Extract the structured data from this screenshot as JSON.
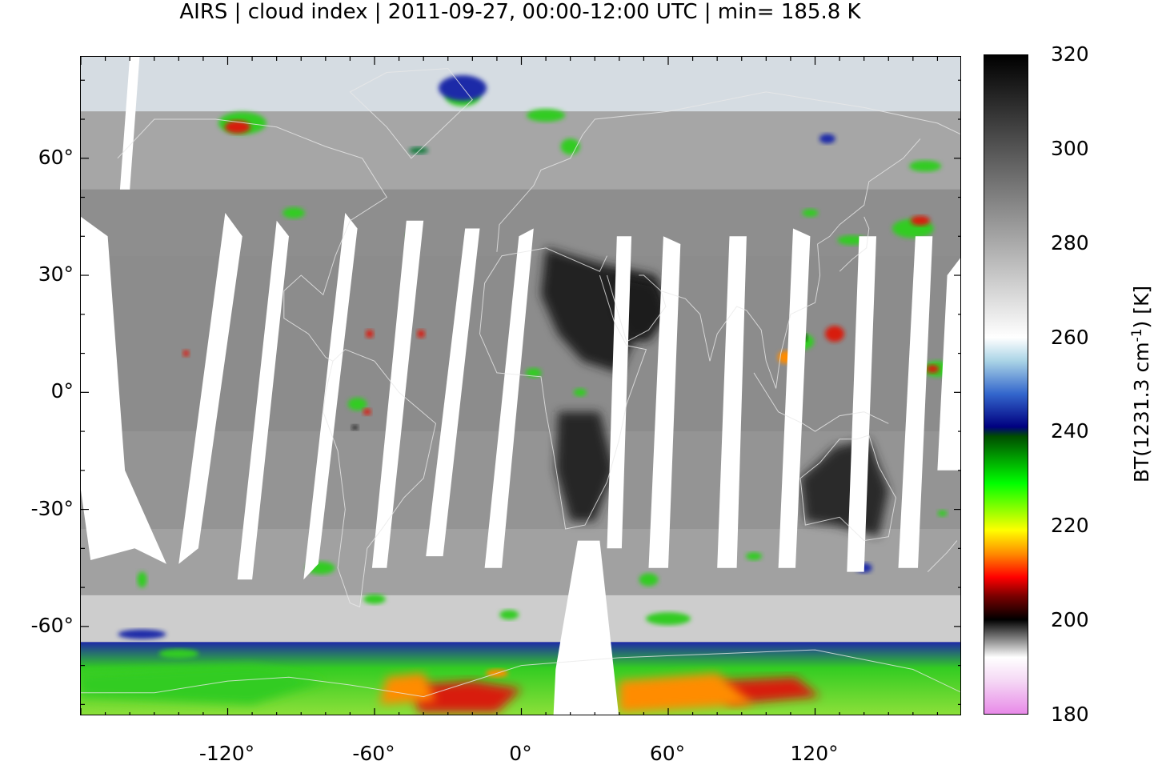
{
  "title": "AIRS | cloud index | 2011-09-27, 00:00-12:00 UTC | min= 185.8 K",
  "colors": {
    "cloud_cold_pink": "#e88ae8",
    "cloud_black": "#151515",
    "cloud_red": "#d81a0a",
    "cloud_orange": "#ff8c00",
    "cloud_yellow": "#ffe800",
    "cloud_green": "#33cc22",
    "cloud_darkgreen": "#0a7a3a",
    "cloud_blue": "#1e2aa8",
    "cloud_lightblue": "#b8d8e8",
    "surface_gray": "#9a9a9a",
    "hot_surface": "#222222",
    "swath_gap": "#ffffff"
  },
  "chart_data": {
    "type": "heatmap",
    "title": "AIRS | cloud index | 2011-09-27, 00:00-12:00 UTC | min= 185.8 K",
    "instrument": "AIRS",
    "product": "cloud index",
    "date": "2011-09-27",
    "time_window": "00:00-12:00 UTC",
    "min_value_K": 185.8,
    "x_ticks": [
      "-120°",
      "-60°",
      "0°",
      "60°",
      "120°"
    ],
    "x_tick_values": [
      -120,
      -60,
      0,
      60,
      120
    ],
    "y_ticks": [
      "60°",
      "30°",
      "0°",
      "-30°",
      "-60°"
    ],
    "y_tick_values": [
      60,
      30,
      0,
      -30,
      -60
    ],
    "x_range": [
      -180,
      180
    ],
    "y_range": [
      -83,
      86
    ],
    "colorbar": {
      "label": "BT(1231.3 cm",
      "label_exponent": "-1",
      "label_tail": ") [K]",
      "ticks": [
        "320",
        "300",
        "280",
        "260",
        "240",
        "220",
        "200",
        "180"
      ],
      "tick_values": [
        320,
        300,
        280,
        260,
        240,
        220,
        200,
        180
      ],
      "range": [
        180,
        320
      ],
      "stops": [
        {
          "value": 180,
          "color": "#e88ae8"
        },
        {
          "value": 187,
          "color": "#f5d8f5"
        },
        {
          "value": 192,
          "color": "#ffffff"
        },
        {
          "value": 200,
          "color": "#000000"
        },
        {
          "value": 205,
          "color": "#7a0000"
        },
        {
          "value": 209,
          "color": "#ff0000"
        },
        {
          "value": 214,
          "color": "#ff8c00"
        },
        {
          "value": 219,
          "color": "#ffff00"
        },
        {
          "value": 229,
          "color": "#00ff00"
        },
        {
          "value": 239,
          "color": "#004d00"
        },
        {
          "value": 241,
          "color": "#000080"
        },
        {
          "value": 248,
          "color": "#3366cc"
        },
        {
          "value": 255,
          "color": "#aad4e6"
        },
        {
          "value": 260,
          "color": "#ffffff"
        },
        {
          "value": 320,
          "color": "#000000"
        }
      ]
    }
  }
}
